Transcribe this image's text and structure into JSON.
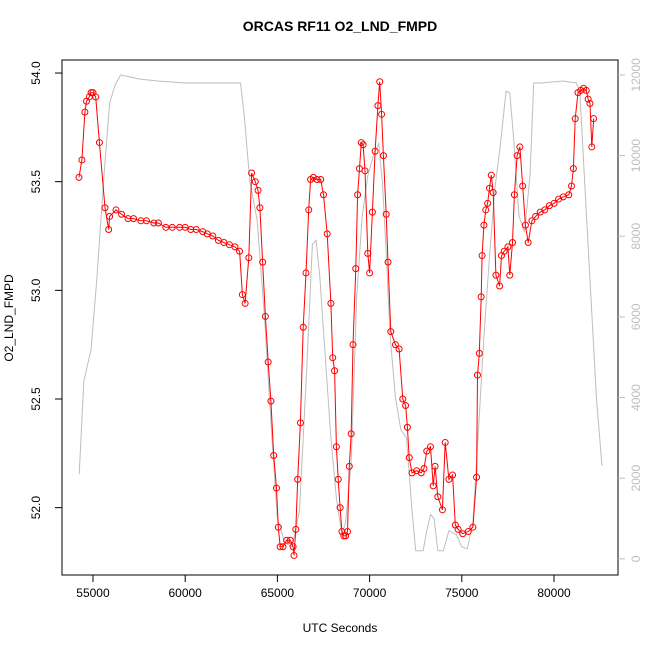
{
  "chart_data": {
    "type": "line",
    "title": "ORCAS RF11 O2_LND_FMPD",
    "x_label": "UTC Seconds",
    "y_label": "O2_LND_FMPD",
    "xlim": [
      53320,
      83470
    ],
    "ylim": [
      51.69,
      54.06
    ],
    "y2lim": [
      -400,
      12370
    ],
    "xticks": [
      55000,
      60000,
      65000,
      70000,
      75000,
      80000
    ],
    "yticks": [
      {
        "value": 52,
        "label": "52.0"
      },
      {
        "value": 52.5,
        "label": "52.5"
      },
      {
        "value": 53,
        "label": "53.0"
      },
      {
        "value": 53.5,
        "label": "53.5"
      },
      {
        "value": 54,
        "label": "54.0"
      }
    ],
    "y2ticks": [
      0,
      2000,
      4000,
      6000,
      8000,
      10000,
      12000
    ],
    "y2color": "#bebebe",
    "series": [
      {
        "color": "#ff0000",
        "markers": true,
        "x": [
          54240,
          54400,
          54560,
          54650,
          54800,
          54900,
          55000,
          55150,
          55350,
          55650,
          55850,
          55900,
          56250,
          56550,
          56900,
          57200,
          57600,
          57900,
          58300,
          58550,
          58950,
          59300,
          59700,
          60000,
          60300,
          60600,
          60950,
          61200,
          61500,
          61800,
          62100,
          62400,
          62700,
          62950,
          63100,
          63250,
          63450,
          63600,
          63800,
          63950,
          64050,
          64200,
          64350,
          64500,
          64650,
          64800,
          64950,
          65050,
          65150,
          65300,
          65500,
          65700,
          65850,
          65900,
          66000,
          66100,
          66250,
          66400,
          66550,
          66700,
          66800,
          66950,
          67150,
          67350,
          67500,
          67700,
          67900,
          68000,
          68100,
          68200,
          68300,
          68400,
          68500,
          68600,
          68700,
          68800,
          68900,
          69000,
          69100,
          69250,
          69350,
          69450,
          69550,
          69650,
          69750,
          69900,
          70000,
          70150,
          70300,
          70450,
          70550,
          70650,
          70750,
          70900,
          71000,
          71150,
          71400,
          71600,
          71800,
          71950,
          72050,
          72150,
          72300,
          72550,
          72800,
          72950,
          73100,
          73300,
          73450,
          73550,
          73700,
          73950,
          74100,
          74300,
          74500,
          74650,
          74800,
          75050,
          75350,
          75600,
          75800,
          75850,
          75950,
          76050,
          76100,
          76200,
          76300,
          76400,
          76500,
          76600,
          76700,
          76850,
          77050,
          77150,
          77300,
          77500,
          77600,
          77750,
          77850,
          78000,
          78150,
          78300,
          78450,
          78600,
          78800,
          79000,
          79250,
          79500,
          79750,
          80000,
          80250,
          80500,
          80800,
          80950,
          81050,
          81150,
          81300,
          81450,
          81600,
          81750,
          81850,
          81950,
          82050,
          82150
        ],
        "values": [
          53.52,
          53.6,
          53.82,
          53.87,
          53.89,
          53.91,
          53.91,
          53.89,
          53.68,
          53.38,
          53.28,
          53.34,
          53.37,
          53.35,
          53.33,
          53.33,
          53.32,
          53.32,
          53.31,
          53.31,
          53.29,
          53.29,
          53.29,
          53.29,
          53.28,
          53.28,
          53.27,
          53.26,
          53.25,
          53.23,
          53.22,
          53.21,
          53.2,
          53.18,
          52.98,
          52.94,
          53.15,
          53.54,
          53.5,
          53.46,
          53.38,
          53.13,
          52.88,
          52.67,
          52.49,
          52.24,
          52.09,
          51.91,
          51.82,
          51.82,
          51.85,
          51.85,
          51.82,
          51.78,
          51.9,
          52.13,
          52.39,
          52.83,
          53.08,
          53.37,
          53.51,
          53.52,
          53.51,
          53.51,
          53.44,
          53.26,
          52.94,
          52.69,
          52.63,
          52.28,
          52.13,
          52.0,
          51.89,
          51.87,
          51.87,
          51.89,
          52.19,
          52.34,
          52.75,
          53.1,
          53.44,
          53.56,
          53.68,
          53.67,
          53.55,
          53.17,
          53.08,
          53.36,
          53.64,
          53.85,
          53.96,
          53.81,
          53.62,
          53.35,
          53.13,
          52.81,
          52.75,
          52.73,
          52.5,
          52.47,
          52.37,
          52.23,
          52.16,
          52.17,
          52.16,
          52.18,
          52.26,
          52.28,
          52.1,
          52.19,
          52.05,
          51.99,
          52.3,
          52.13,
          52.15,
          51.92,
          51.9,
          51.88,
          51.89,
          51.91,
          52.14,
          52.61,
          52.71,
          52.97,
          53.16,
          53.3,
          53.37,
          53.4,
          53.47,
          53.53,
          53.45,
          53.07,
          53.02,
          53.16,
          53.18,
          53.2,
          53.07,
          53.22,
          53.44,
          53.62,
          53.66,
          53.48,
          53.3,
          53.22,
          53.32,
          53.34,
          53.36,
          53.37,
          53.39,
          53.4,
          53.42,
          53.43,
          53.44,
          53.48,
          53.56,
          53.79,
          53.91,
          53.92,
          53.93,
          53.92,
          53.88,
          53.86,
          53.66,
          53.79
        ]
      },
      {
        "color": "#bebebe",
        "axis": "y2",
        "markers": false,
        "x": [
          54250,
          54500,
          54900,
          55200,
          55600,
          55900,
          56200,
          56500,
          57500,
          58500,
          60000,
          61500,
          62500,
          63000,
          63200,
          63500,
          63900,
          64300,
          64700,
          65000,
          65400,
          65800,
          66200,
          66600,
          66900,
          67100,
          67300,
          67600,
          67900,
          68200,
          68500,
          68700,
          69000,
          69300,
          69600,
          69900,
          70200,
          70500,
          70700,
          70900,
          71100,
          71400,
          71700,
          72000,
          72300,
          72500,
          72900,
          73100,
          73300,
          73500,
          73700,
          74000,
          74300,
          74700,
          75000,
          75300,
          75600,
          75800,
          76200,
          76500,
          76800,
          77100,
          77400,
          77600,
          77800,
          78100,
          78400,
          78700,
          78900,
          79300,
          80500,
          81200,
          81400,
          81700,
          82000,
          82300,
          82600
        ],
        "values": [
          2100,
          4400,
          5200,
          6900,
          9500,
          11300,
          11750,
          12000,
          11900,
          11850,
          11800,
          11800,
          11800,
          11800,
          11000,
          9400,
          8400,
          6000,
          3000,
          1000,
          400,
          300,
          1200,
          4800,
          7800,
          7900,
          7000,
          5000,
          3000,
          1500,
          600,
          900,
          2400,
          6500,
          8500,
          9500,
          10000,
          10300,
          9300,
          7600,
          5600,
          4000,
          3200,
          3000,
          1200,
          200,
          200,
          700,
          1100,
          1000,
          200,
          200,
          700,
          600,
          300,
          250,
          900,
          2400,
          5500,
          7500,
          9200,
          10300,
          11600,
          11550,
          10500,
          8500,
          8100,
          9500,
          11800,
          11800,
          11850,
          11800,
          11600,
          9000,
          6500,
          4000,
          2300
        ]
      }
    ]
  }
}
